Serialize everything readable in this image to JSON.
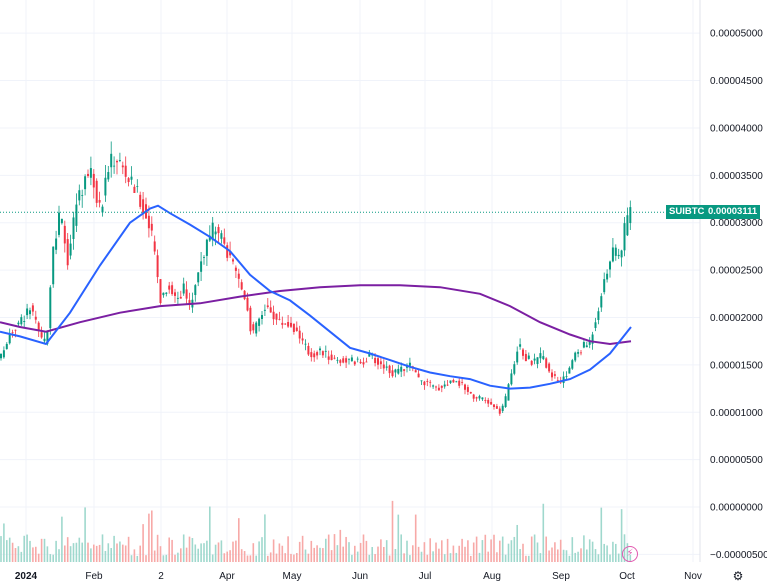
{
  "chart_data": {
    "type": "candlestick",
    "symbol": "SUIBTC",
    "last_price": "0.00003111",
    "y_ticks": [
      "0.00005000",
      "0.00004500",
      "0.00004000",
      "0.00003500",
      "0.00003000",
      "0.00002500",
      "0.00002000",
      "0.00001500",
      "0.00001000",
      "0.00000500",
      "0.00000000",
      "−0.00000500"
    ],
    "y_tick_values": [
      5e-05,
      4.5e-05,
      4e-05,
      3.5e-05,
      3e-05,
      2.5e-05,
      2e-05,
      1.5e-05,
      1e-05,
      5e-06,
      0,
      -5e-06
    ],
    "x_ticks": [
      "2024",
      "Feb",
      "2",
      "Apr",
      "May",
      "Jun",
      "Jul",
      "Aug",
      "Sep",
      "Oct",
      "Nov"
    ],
    "ylim": [
      -5.8e-06,
      5.35e-05
    ],
    "colors": {
      "up": "#089981",
      "down": "#f23645",
      "ma_fast": "#2962ff",
      "ma_slow": "#7b1fa2",
      "volume_up": "#9fd8cd",
      "volume_down": "#f7a9a7",
      "grid": "#f0f3fa"
    },
    "price_path": [
      [
        0,
        1.55e-05
      ],
      [
        10,
        1.85e-05
      ],
      [
        20,
        1.95e-05
      ],
      [
        30,
        2.1e-05
      ],
      [
        40,
        1.8e-05
      ],
      [
        46,
        1.7e-05
      ],
      [
        52,
        2.6e-05
      ],
      [
        60,
        3.1e-05
      ],
      [
        68,
        2.6e-05
      ],
      [
        76,
        3.2e-05
      ],
      [
        84,
        3.45e-05
      ],
      [
        92,
        3.55e-05
      ],
      [
        100,
        3.1e-05
      ],
      [
        108,
        3.6e-05
      ],
      [
        116,
        3.7e-05
      ],
      [
        124,
        3.55e-05
      ],
      [
        132,
        3.4e-05
      ],
      [
        140,
        3.25e-05
      ],
      [
        148,
        3e-05
      ],
      [
        154,
        2.75e-05
      ],
      [
        160,
        2.2e-05
      ],
      [
        168,
        2.35e-05
      ],
      [
        176,
        2.2e-05
      ],
      [
        184,
        2.3e-05
      ],
      [
        190,
        2.1e-05
      ],
      [
        198,
        2.5e-05
      ],
      [
        206,
        2.75e-05
      ],
      [
        214,
        2.95e-05
      ],
      [
        222,
        2.8e-05
      ],
      [
        230,
        2.6e-05
      ],
      [
        238,
        2.4e-05
      ],
      [
        246,
        2.2e-05
      ],
      [
        252,
        1.8e-05
      ],
      [
        258,
        1.95e-05
      ],
      [
        264,
        2.1e-05
      ],
      [
        270,
        2.1e-05
      ],
      [
        278,
        1.95e-05
      ],
      [
        286,
        1.95e-05
      ],
      [
        294,
        1.9e-05
      ],
      [
        302,
        1.75e-05
      ],
      [
        310,
        1.6e-05
      ],
      [
        320,
        1.65e-05
      ],
      [
        330,
        1.58e-05
      ],
      [
        340,
        1.55e-05
      ],
      [
        350,
        1.55e-05
      ],
      [
        360,
        1.52e-05
      ],
      [
        370,
        1.6e-05
      ],
      [
        378,
        1.52e-05
      ],
      [
        386,
        1.48e-05
      ],
      [
        394,
        1.4e-05
      ],
      [
        402,
        1.45e-05
      ],
      [
        410,
        1.5e-05
      ],
      [
        418,
        1.35e-05
      ],
      [
        428,
        1.3e-05
      ],
      [
        436,
        1.25e-05
      ],
      [
        446,
        1.3e-05
      ],
      [
        456,
        1.35e-05
      ],
      [
        466,
        1.25e-05
      ],
      [
        476,
        1.15e-05
      ],
      [
        486,
        1.12e-05
      ],
      [
        494,
        1.05e-05
      ],
      [
        500,
        1e-05
      ],
      [
        506,
        1.15e-05
      ],
      [
        512,
        1.45e-05
      ],
      [
        518,
        1.7e-05
      ],
      [
        526,
        1.58e-05
      ],
      [
        534,
        1.52e-05
      ],
      [
        542,
        1.6e-05
      ],
      [
        550,
        1.42e-05
      ],
      [
        558,
        1.3e-05
      ],
      [
        566,
        1.38e-05
      ],
      [
        574,
        1.6e-05
      ],
      [
        582,
        1.68e-05
      ],
      [
        590,
        1.75e-05
      ],
      [
        598,
        2.1e-05
      ],
      [
        606,
        2.5e-05
      ],
      [
        614,
        2.7e-05
      ],
      [
        620,
        2.65e-05
      ],
      [
        626,
        3e-05
      ],
      [
        631,
        3.111e-05
      ]
    ],
    "ma_fast_path": [
      [
        0,
        1.85e-05
      ],
      [
        20,
        1.8e-05
      ],
      [
        46,
        1.72e-05
      ],
      [
        70,
        2.05e-05
      ],
      [
        100,
        2.55e-05
      ],
      [
        130,
        3e-05
      ],
      [
        150,
        3.15e-05
      ],
      [
        158,
        3.18e-05
      ],
      [
        170,
        3.1e-05
      ],
      [
        190,
        2.98e-05
      ],
      [
        210,
        2.85e-05
      ],
      [
        230,
        2.7e-05
      ],
      [
        250,
        2.45e-05
      ],
      [
        270,
        2.28e-05
      ],
      [
        290,
        2.18e-05
      ],
      [
        310,
        2.02e-05
      ],
      [
        330,
        1.85e-05
      ],
      [
        350,
        1.68e-05
      ],
      [
        370,
        1.62e-05
      ],
      [
        390,
        1.55e-05
      ],
      [
        410,
        1.48e-05
      ],
      [
        430,
        1.42e-05
      ],
      [
        450,
        1.38e-05
      ],
      [
        470,
        1.35e-05
      ],
      [
        490,
        1.28e-05
      ],
      [
        510,
        1.25e-05
      ],
      [
        530,
        1.26e-05
      ],
      [
        550,
        1.3e-05
      ],
      [
        570,
        1.35e-05
      ],
      [
        590,
        1.45e-05
      ],
      [
        610,
        1.62e-05
      ],
      [
        631,
        1.9e-05
      ]
    ],
    "ma_slow_path": [
      [
        0,
        1.95e-05
      ],
      [
        20,
        1.9e-05
      ],
      [
        46,
        1.85e-05
      ],
      [
        80,
        1.95e-05
      ],
      [
        120,
        2.05e-05
      ],
      [
        160,
        2.12e-05
      ],
      [
        200,
        2.15e-05
      ],
      [
        240,
        2.22e-05
      ],
      [
        280,
        2.28e-05
      ],
      [
        320,
        2.32e-05
      ],
      [
        360,
        2.34e-05
      ],
      [
        400,
        2.34e-05
      ],
      [
        440,
        2.32e-05
      ],
      [
        480,
        2.25e-05
      ],
      [
        510,
        2.12e-05
      ],
      [
        540,
        1.95e-05
      ],
      [
        570,
        1.82e-05
      ],
      [
        590,
        1.75e-05
      ],
      [
        610,
        1.72e-05
      ],
      [
        631,
        1.75e-05
      ]
    ]
  }
}
